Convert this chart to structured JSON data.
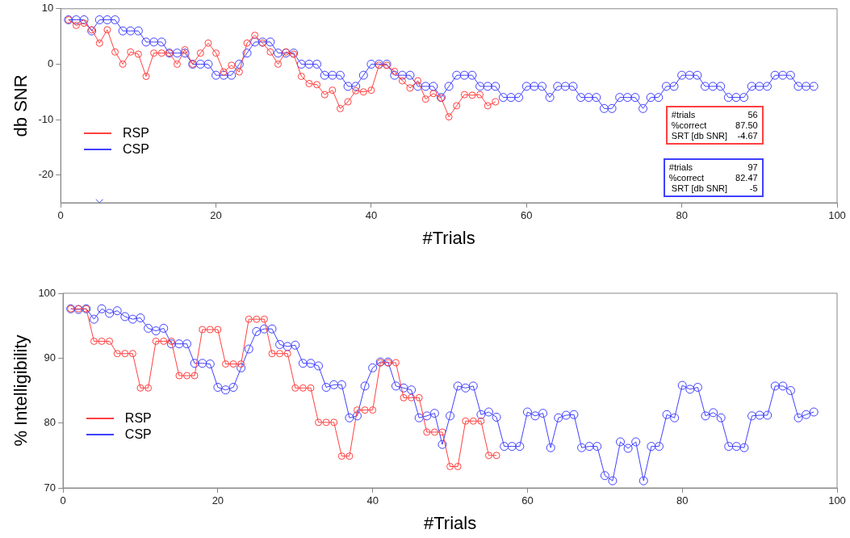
{
  "chart_data": [
    {
      "type": "line",
      "xlabel": "#Trials",
      "ylabel": "db SNR",
      "xlim": [
        0,
        100
      ],
      "xticks": [
        0,
        20,
        40,
        60,
        80,
        100
      ],
      "ylim": [
        -25,
        10
      ],
      "yticks": [
        -20,
        -10,
        0,
        10
      ],
      "grid": false,
      "legend": "left",
      "marker": "circle",
      "line_style": "solid",
      "series": [
        {
          "name": "RSP",
          "color": "#ff4040",
          "x": [
            1,
            2,
            3,
            4,
            5,
            6,
            7,
            8,
            9,
            10,
            11,
            12,
            13,
            14,
            15,
            16,
            17,
            18,
            19,
            20,
            21,
            22,
            23,
            24,
            25,
            26,
            27,
            28,
            29,
            30,
            31,
            32,
            33,
            34,
            35,
            36,
            37,
            38,
            39,
            40,
            41,
            42,
            43,
            44,
            45,
            46,
            47,
            48,
            49,
            50,
            51,
            52,
            53,
            54,
            55,
            56
          ],
          "values": [
            8,
            7,
            7.4,
            6.2,
            3.8,
            6.2,
            2.2,
            0,
            2.2,
            1.8,
            -2.2,
            2,
            2,
            2,
            0,
            2.6,
            0,
            2,
            3.8,
            2,
            -1.4,
            -0.2,
            -1.4,
            3.8,
            5.2,
            3.8,
            2.2,
            0,
            2.2,
            1.8,
            -2.2,
            -3.5,
            -3.7,
            -5.5,
            -4.7,
            -8,
            -6.8,
            -4.8,
            -5,
            -4.7,
            -0.2,
            -0.2,
            -1.3,
            -3,
            -4.3,
            -3,
            -6.3,
            -5.3,
            -6.1,
            -9.5,
            -7.5,
            -5.5,
            -5.6,
            -5.5,
            -7.5,
            -6.8
          ]
        },
        {
          "name": "CSP",
          "color": "#4040ff",
          "x": [
            1,
            2,
            3,
            4,
            5,
            6,
            7,
            8,
            9,
            10,
            11,
            12,
            13,
            14,
            15,
            16,
            17,
            18,
            19,
            20,
            21,
            22,
            23,
            24,
            25,
            26,
            27,
            28,
            29,
            30,
            31,
            32,
            33,
            34,
            35,
            36,
            37,
            38,
            39,
            40,
            41,
            42,
            43,
            44,
            45,
            46,
            47,
            48,
            49,
            50,
            51,
            52,
            53,
            54,
            55,
            56,
            57,
            58,
            59,
            60,
            61,
            62,
            63,
            64,
            65,
            66,
            67,
            68,
            69,
            70,
            71,
            72,
            73,
            74,
            75,
            76,
            77,
            78,
            79,
            80,
            81,
            82,
            83,
            84,
            85,
            86,
            87,
            88,
            89,
            90,
            91,
            92,
            93,
            94,
            95,
            96,
            97
          ],
          "values": [
            8,
            8,
            8,
            6,
            8,
            8,
            8,
            6,
            6,
            6,
            4,
            4,
            4,
            2,
            2,
            2,
            0,
            0,
            0,
            -2,
            -2,
            -2,
            0,
            2,
            4,
            4,
            4,
            2,
            2,
            2,
            0,
            0,
            0,
            -2,
            -2,
            -2,
            -4,
            -4,
            -2,
            0,
            0,
            0,
            -2,
            -2,
            -2,
            -4,
            -4,
            -4,
            -6,
            -4,
            -2,
            -2,
            -2,
            -4,
            -4,
            -4,
            -6,
            -6,
            -6,
            -4,
            -4,
            -4,
            -6,
            -4,
            -4,
            -4,
            -6,
            -6,
            -6,
            -8,
            -8,
            -6,
            -6,
            -6,
            -8,
            -6,
            -6,
            -4,
            -4,
            -2,
            -2,
            -2,
            -4,
            -4,
            -4,
            -6,
            -6,
            -6,
            -4,
            -4,
            -4,
            -2,
            -2,
            -2,
            -4,
            -4,
            -4
          ]
        },
        {
          "type": "scatter",
          "marker": "cross",
          "color": "#4040ff",
          "x": [
            5
          ],
          "values": [
            -25
          ]
        }
      ],
      "annotations": [
        "#trials\t56\n%correct\t87.50\nSRT [db SNR]\t-4.67",
        "#trials\t97\n%correct\t82.47\n SRT [db SNR]\t-5"
      ]
    },
    {
      "type": "line",
      "xlabel": "#Trials",
      "ylabel": "% Intelligibility",
      "xlim": [
        0,
        100
      ],
      "xticks": [
        0,
        20,
        40,
        60,
        80,
        100
      ],
      "ylim": [
        70,
        100
      ],
      "yticks": [
        70,
        80,
        90,
        100
      ],
      "grid": false,
      "legend": "left",
      "marker": "circle",
      "line_style": "solid",
      "series": [
        {
          "name": "RSP",
          "color": "#ff4040",
          "x": [
            1,
            2,
            3,
            4,
            5,
            6,
            7,
            8,
            9,
            10,
            11,
            12,
            13,
            14,
            15,
            16,
            17,
            18,
            19,
            20,
            21,
            22,
            23,
            24,
            25,
            26,
            27,
            28,
            29,
            30,
            31,
            32,
            33,
            34,
            35,
            36,
            37,
            38,
            39,
            40,
            41,
            42,
            43,
            44,
            45,
            46,
            47,
            48,
            49,
            50,
            51,
            52,
            53,
            54,
            55,
            56
          ],
          "values": [
            97.6,
            97.6,
            97.6,
            92.6,
            92.6,
            92.6,
            90.7,
            90.7,
            90.7,
            85.4,
            85.4,
            92.6,
            92.6,
            92.6,
            87.3,
            87.3,
            87.3,
            94.4,
            94.4,
            94.4,
            89.1,
            89.1,
            89.1,
            96,
            96,
            96,
            90.7,
            90.7,
            90.7,
            85.4,
            85.4,
            85.4,
            80.1,
            80.1,
            80.1,
            74.9,
            74.9,
            82,
            82,
            82,
            89.3,
            89.3,
            89.3,
            83.9,
            83.9,
            83.9,
            78.6,
            78.6,
            78.6,
            73.3,
            73.3,
            80.3,
            80.3,
            80.3,
            75,
            75
          ]
        },
        {
          "name": "CSP",
          "color": "#4040ff",
          "x": [
            1,
            2,
            3,
            4,
            5,
            6,
            7,
            8,
            9,
            10,
            11,
            12,
            13,
            14,
            15,
            16,
            17,
            18,
            19,
            20,
            21,
            22,
            23,
            24,
            25,
            26,
            27,
            28,
            29,
            30,
            31,
            32,
            33,
            34,
            35,
            36,
            37,
            38,
            39,
            40,
            41,
            42,
            43,
            44,
            45,
            46,
            47,
            48,
            49,
            50,
            51,
            52,
            53,
            54,
            55,
            56,
            57,
            58,
            59,
            60,
            61,
            62,
            63,
            64,
            65,
            66,
            67,
            68,
            69,
            70,
            71,
            72,
            73,
            74,
            75,
            76,
            77,
            78,
            79,
            80,
            81,
            82,
            83,
            84,
            85,
            86,
            87,
            88,
            89,
            90,
            91,
            92,
            93,
            94,
            95,
            96,
            97
          ],
          "values": [
            97.6,
            97.5,
            97.6,
            96,
            97.6,
            96.9,
            97.3,
            96.4,
            96,
            96.2,
            94.6,
            94.2,
            94.6,
            92.2,
            92.2,
            92.2,
            89.2,
            89.2,
            89.1,
            85.5,
            85.1,
            85.5,
            88.5,
            91.4,
            94.1,
            94.5,
            94.5,
            92.1,
            91.8,
            92,
            89.2,
            89.2,
            88.8,
            85.5,
            85.9,
            85.9,
            80.8,
            81.1,
            85.7,
            88.5,
            89.4,
            89.4,
            85.7,
            85.4,
            85.1,
            80.8,
            81.1,
            81.5,
            76.7,
            81.1,
            85.7,
            85.4,
            85.7,
            81.3,
            81.7,
            80.9,
            76.4,
            76.4,
            76.4,
            81.7,
            81.1,
            81.5,
            76.2,
            80.8,
            81.2,
            81.3,
            76.2,
            76.4,
            76.4,
            71.9,
            71.1,
            77.1,
            76.1,
            77.1,
            71.1,
            76.4,
            76.4,
            81.3,
            80.8,
            85.8,
            85.2,
            85.5,
            81.1,
            81.6,
            80.8,
            76.4,
            76.4,
            76.2,
            81.1,
            81.2,
            81.2,
            85.7,
            85.7,
            85,
            80.8,
            81.3,
            81.7
          ]
        }
      ]
    }
  ]
}
